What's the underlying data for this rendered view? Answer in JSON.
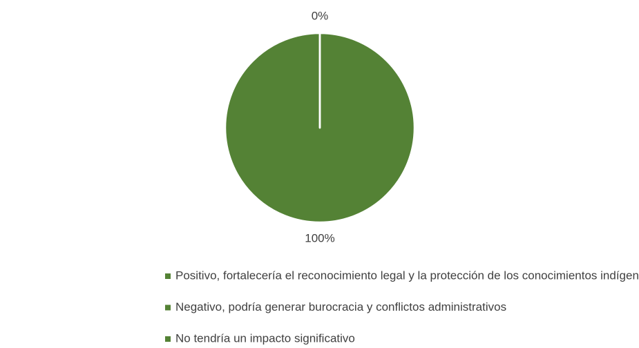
{
  "chart_data": {
    "type": "pie",
    "categories": [
      "Positivo, fortalecería el reconocimiento legal y la protección de los conocimientos indígenas",
      "Negativo, podría generar burocracia y conflictos administrativos",
      "No tendría un impacto significativo"
    ],
    "values": [
      100,
      0,
      0
    ],
    "value_labels": [
      "100%",
      "0%",
      null
    ],
    "colors": [
      "#548235",
      "#548235",
      "#548235"
    ],
    "legend": "bottom"
  }
}
